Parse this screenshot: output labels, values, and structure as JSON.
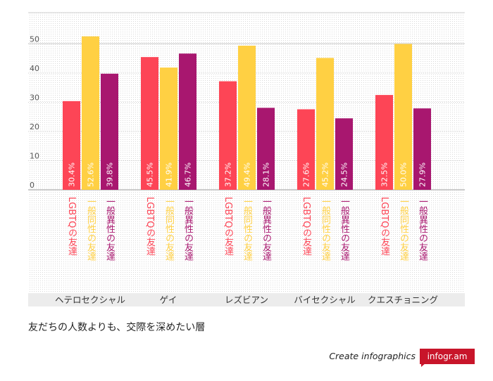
{
  "chart_data": {
    "type": "bar",
    "categories": [
      "ヘテロセクシャル",
      "ゲイ",
      "レズビアン",
      "バイセクシャル",
      "クエスチョニング"
    ],
    "series": [
      {
        "name": "LGBTQの友達",
        "values": [
          30.4,
          45.5,
          37.2,
          27.6,
          32.5
        ],
        "labels": [
          "30.4%",
          "45.5%",
          "37.2%",
          "27.6%",
          "32.5%"
        ],
        "color": "#fd4556"
      },
      {
        "name": "一般同性の友達",
        "values": [
          52.6,
          41.9,
          49.4,
          45.2,
          50.0
        ],
        "labels": [
          "52.6%",
          "41.9%",
          "49.4%",
          "45.2%",
          "50.0%"
        ],
        "color": "#ffd043"
      },
      {
        "name": "一般異性の友達",
        "values": [
          39.8,
          46.7,
          28.1,
          24.5,
          27.9
        ],
        "labels": [
          "39.8%",
          "46.7%",
          "28.1%",
          "24.5%",
          "27.9%"
        ],
        "color": "#a8176f"
      }
    ],
    "yticks": [
      "0",
      "10",
      "20",
      "30",
      "40",
      "50"
    ],
    "ylim": [
      0,
      55
    ],
    "legend_position": "below-bars",
    "title": "友だちの人数よりも、交際を深めたい層"
  },
  "footer": {
    "credit": "Create infographics",
    "brand": "infogr.am"
  }
}
